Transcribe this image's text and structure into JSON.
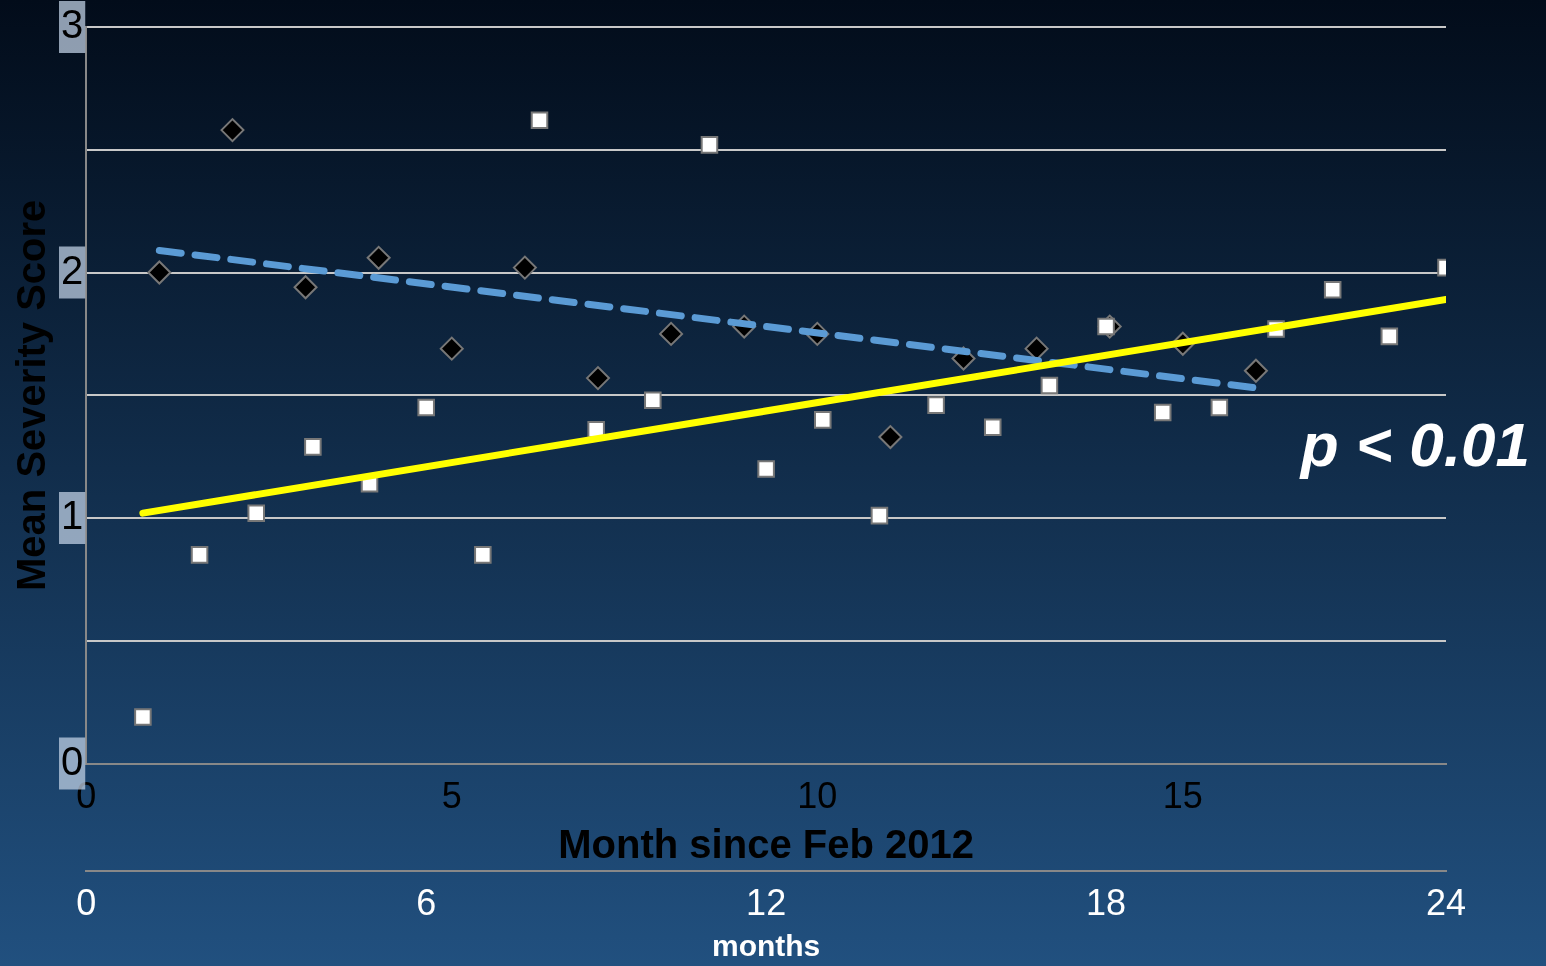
{
  "chart_data": {
    "type": "scatter",
    "xlabel": "Month since Feb 2012",
    "x2label": "months",
    "ylabel": "Mean Severity Score",
    "xlim": [
      0,
      18.6
    ],
    "xticks": [
      0,
      5,
      10,
      15
    ],
    "x2lim": [
      0,
      24
    ],
    "x2ticks": [
      0,
      6,
      12,
      18,
      24
    ],
    "ylim": [
      0,
      3
    ],
    "yticks": [
      0,
      {
        "value": 0.5,
        "label": null
      },
      1,
      {
        "value": 1.5,
        "label": null
      },
      2,
      {
        "value": 2.5,
        "label": null
      },
      3
    ],
    "grid": "y",
    "legend": false,
    "annotations": [
      "p < 0.01"
    ],
    "series": [
      {
        "type": "scatter",
        "marker": "diamond",
        "color": "#000000",
        "x": [
          1,
          2,
          3,
          4,
          5,
          6,
          7,
          8,
          9,
          10,
          11,
          12,
          13,
          14,
          15,
          16
        ],
        "values": [
          2.0,
          2.58,
          1.94,
          2.06,
          1.69,
          2.02,
          1.57,
          1.75,
          1.78,
          1.75,
          1.33,
          1.65,
          1.69,
          1.78,
          1.71,
          1.6
        ]
      },
      {
        "type": "line",
        "line_style": "dashed",
        "marker": "none",
        "color": "#5b9bd5",
        "x": [
          1,
          16
        ],
        "values": [
          2.09,
          1.53
        ]
      },
      {
        "type": "scatter",
        "axis": "x2",
        "marker": "square",
        "color": "#ffffff",
        "x": [
          1,
          2,
          3,
          4,
          5,
          6,
          7,
          8,
          9,
          10,
          11,
          12,
          13,
          14,
          15,
          16,
          17,
          18,
          19,
          20,
          21,
          22,
          23,
          24
        ],
        "values": [
          0.19,
          0.85,
          1.02,
          1.29,
          1.14,
          1.45,
          0.85,
          2.62,
          1.36,
          1.48,
          2.52,
          1.2,
          1.4,
          1.01,
          1.46,
          1.37,
          1.54,
          1.78,
          1.43,
          1.45,
          1.77,
          1.93,
          1.74,
          2.02
        ]
      },
      {
        "type": "line",
        "axis": "x2",
        "line_style": "solid",
        "marker": "none",
        "color": "#ffff00",
        "x": [
          1,
          24
        ],
        "values": [
          1.02,
          1.89
        ]
      }
    ]
  }
}
